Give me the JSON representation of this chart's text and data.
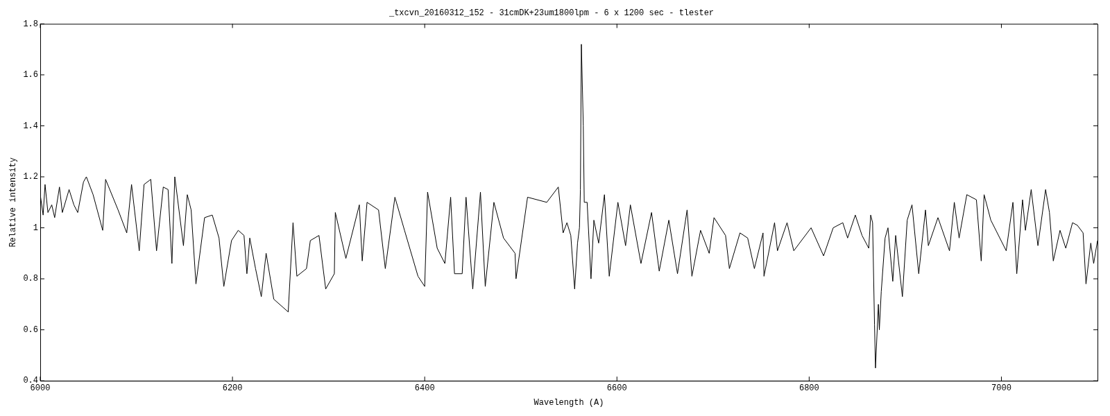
{
  "chart_data": {
    "type": "line",
    "title": "_txcvn_20160312_152 - 31cmDK+23um1800lpm - 6 x 1200 sec - tlester",
    "xlabel": "Wavelength (A)",
    "ylabel": "Relative intensity",
    "xlim": [
      6000,
      7100
    ],
    "xticks": [
      6000,
      6200,
      6400,
      6600,
      6800,
      7000
    ],
    "ylim": [
      0.4,
      1.8
    ],
    "yticks": [
      0.4,
      0.6,
      0.8,
      1,
      1.2,
      1.4,
      1.6,
      1.8
    ],
    "grid": false,
    "legend": false,
    "marker": "none",
    "line_style": "solid",
    "series": [
      {
        "color": "#000000",
        "x": [
          6000,
          6003,
          6005,
          6008,
          6012,
          6015,
          6020,
          6023,
          6030,
          6035,
          6039,
          6045,
          6048,
          6055,
          6065,
          6068,
          6081,
          6090,
          6095,
          6103,
          6108,
          6115,
          6121,
          6128,
          6133,
          6137,
          6140,
          6149,
          6153,
          6157,
          6162,
          6171,
          6179,
          6186,
          6191,
          6199,
          6206,
          6212,
          6215,
          6218,
          6224,
          6230,
          6235,
          6243,
          6258,
          6263,
          6267,
          6277,
          6281,
          6290,
          6297,
          6306,
          6307,
          6318,
          6332,
          6335,
          6340,
          6352,
          6359,
          6369,
          6379,
          6393,
          6400,
          6403,
          6413,
          6421,
          6427,
          6431,
          6439,
          6443,
          6450,
          6458,
          6463,
          6472,
          6482,
          6494,
          6495,
          6507,
          6527,
          6539,
          6544,
          6548,
          6552,
          6556,
          6559,
          6561,
          6562,
          6563,
          6565,
          6566,
          6569,
          6573,
          6576,
          6581,
          6587,
          6592,
          6601,
          6609,
          6614,
          6625,
          6636,
          6644,
          6654,
          6663,
          6673,
          6678,
          6687,
          6696,
          6701,
          6713,
          6717,
          6728,
          6736,
          6743,
          6752,
          6753,
          6764,
          6767,
          6777,
          6784,
          6802,
          6815,
          6825,
          6835,
          6840,
          6848,
          6855,
          6862,
          6864,
          6866,
          6868,
          6869,
          6872,
          6873,
          6875,
          6879,
          6882,
          6887,
          6890,
          6897,
          6902,
          6907,
          6914,
          6921,
          6924,
          6934,
          6946,
          6951,
          6956,
          6964,
          6974,
          6979,
          6982,
          6989,
          7005,
          7012,
          7016,
          7022,
          7025,
          7031,
          7038,
          7046,
          7050,
          7054,
          7061,
          7067,
          7074,
          7079,
          7085,
          7088,
          7093,
          7096,
          7100
        ],
        "values": [
          1.13,
          1.05,
          1.17,
          1.06,
          1.09,
          1.04,
          1.16,
          1.06,
          1.15,
          1.09,
          1.06,
          1.18,
          1.2,
          1.13,
          0.99,
          1.19,
          1.07,
          0.98,
          1.17,
          0.91,
          1.17,
          1.19,
          0.91,
          1.16,
          1.15,
          0.86,
          1.2,
          0.93,
          1.13,
          1.07,
          0.78,
          1.04,
          1.05,
          0.96,
          0.77,
          0.95,
          0.99,
          0.97,
          0.82,
          0.96,
          0.84,
          0.73,
          0.9,
          0.72,
          0.67,
          1.02,
          0.81,
          0.84,
          0.95,
          0.97,
          0.76,
          0.82,
          1.06,
          0.88,
          1.09,
          0.87,
          1.1,
          1.07,
          0.84,
          1.12,
          0.99,
          0.81,
          0.77,
          1.14,
          0.92,
          0.86,
          1.12,
          0.82,
          0.82,
          1.12,
          0.76,
          1.14,
          0.77,
          1.1,
          0.96,
          0.9,
          0.8,
          1.12,
          1.1,
          1.16,
          0.98,
          1.02,
          0.97,
          0.76,
          0.94,
          1,
          1.15,
          1.72,
          1.4,
          1.1,
          1.1,
          0.8,
          1.03,
          0.94,
          1.13,
          0.81,
          1.1,
          0.93,
          1.09,
          0.86,
          1.06,
          0.83,
          1.03,
          0.82,
          1.07,
          0.81,
          0.99,
          0.9,
          1.04,
          0.97,
          0.84,
          0.98,
          0.96,
          0.84,
          0.98,
          0.81,
          1.02,
          0.91,
          1.02,
          0.91,
          1,
          0.89,
          1,
          1.02,
          0.96,
          1.05,
          0.97,
          0.92,
          1.05,
          1.02,
          0.62,
          0.45,
          0.7,
          0.6,
          0.75,
          0.96,
          1,
          0.79,
          0.97,
          0.73,
          1.03,
          1.09,
          0.82,
          1.07,
          0.93,
          1.04,
          0.91,
          1.1,
          0.96,
          1.13,
          1.11,
          0.87,
          1.13,
          1.03,
          0.91,
          1.1,
          0.82,
          1.11,
          0.99,
          1.15,
          0.93,
          1.15,
          1.06,
          0.87,
          0.99,
          0.92,
          1.02,
          1.01,
          0.98,
          0.78,
          0.94,
          0.86,
          0.95
        ]
      }
    ]
  }
}
